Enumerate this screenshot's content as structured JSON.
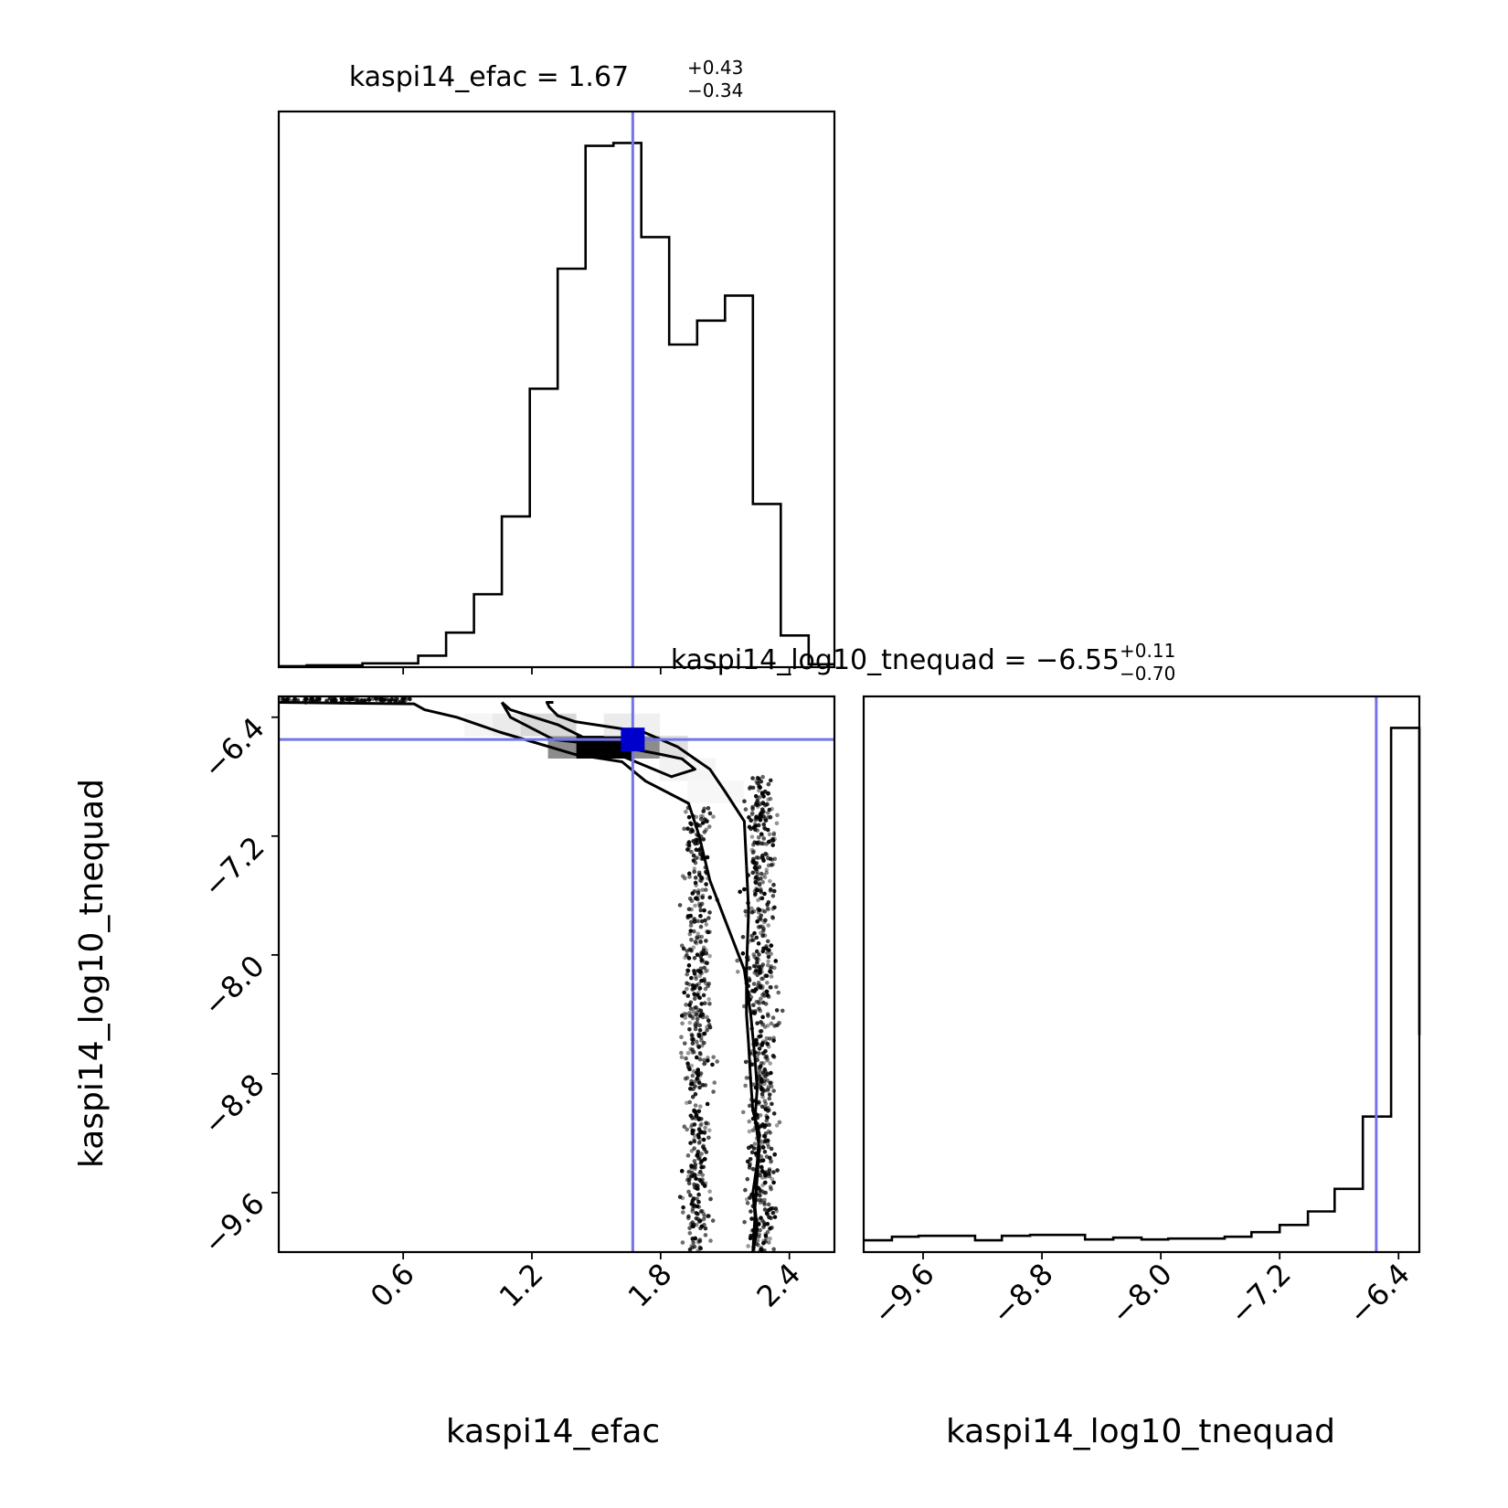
{
  "chart_data": {
    "type": "corner",
    "colors": {
      "truth": "#7474e8",
      "line": "#000000",
      "peak": "#0000cc"
    },
    "titles": {
      "efac": {
        "text": "kaspi14_efac = 1.67",
        "sup": "+0.43",
        "sub": "−0.34"
      },
      "tnequad": {
        "text": "kaspi14_log10_tnequad = −6.55",
        "sup": "+0.11",
        "sub": "−0.70"
      }
    },
    "xlabels": {
      "efac": "kaspi14_efac",
      "tnequad": "kaspi14_log10_tnequad"
    },
    "ylabel": "kaspi14_log10_tnequad",
    "truth": {
      "efac": 1.67,
      "tnequad": -6.55
    },
    "efac_axis": {
      "range": [
        0.02,
        2.61
      ],
      "ticks": [
        0.6,
        1.2,
        1.8,
        2.4
      ],
      "tick_labels": [
        "0.6",
        "1.2",
        "1.8",
        "2.4"
      ]
    },
    "tnequad_axis": {
      "range": [
        -10.0,
        -6.26
      ],
      "ticks": [
        -9.6,
        -8.8,
        -8.0,
        -7.2,
        -6.4
      ],
      "tick_labels": [
        "−9.6",
        "−8.8",
        "−8.0",
        "−7.2",
        "−6.4"
      ]
    },
    "efac_hist": {
      "edges": [
        0.02,
        0.15,
        0.28,
        0.41,
        0.54,
        0.67,
        0.8,
        0.93,
        1.06,
        1.19,
        1.32,
        1.45,
        1.58,
        1.71,
        1.84,
        1.97,
        2.1,
        2.23,
        2.36,
        2.49,
        2.61
      ],
      "counts": [
        1,
        2,
        2,
        4,
        4,
        12,
        36,
        76,
        157,
        290,
        415,
        543,
        546,
        448,
        336,
        361,
        387,
        170,
        33,
        3
      ]
    },
    "tnequad_hist": {
      "edges": [
        -10.0,
        -9.81,
        -9.63,
        -9.44,
        -9.25,
        -9.07,
        -8.88,
        -8.69,
        -8.51,
        -8.32,
        -8.13,
        -7.95,
        -7.76,
        -7.57,
        -7.39,
        -7.2,
        -7.01,
        -6.83,
        -6.64,
        -6.45,
        -6.26
      ],
      "counts": [
        13,
        17,
        18,
        18,
        13,
        18,
        19,
        19,
        14,
        16,
        14,
        15,
        15,
        17,
        22,
        30,
        45,
        70,
        150,
        580,
        240
      ]
    },
    "contours": [
      {
        "level": "outer",
        "efac": [
          0.02,
          0.65,
          0.7,
          0.85,
          1.05,
          1.4,
          1.62,
          1.73,
          1.93,
          1.98,
          2.03,
          2.11,
          2.19,
          2.22,
          2.24,
          2.25,
          2.24,
          2.26,
          2.25,
          2.24,
          2.25,
          2.23,
          2.24,
          2.23,
          2.25,
          2.26,
          2.23,
          2.22,
          2.21,
          2.2,
          2.2,
          2.21,
          2.2
        ],
        "tnequad": [
          -6.3,
          -6.31,
          -6.35,
          -6.4,
          -6.5,
          -6.65,
          -6.7,
          -6.83,
          -6.98,
          -7.2,
          -7.5,
          -7.8,
          -8.1,
          -8.4,
          -8.7,
          -8.9,
          -9.1,
          -9.3,
          -9.5,
          -9.7,
          -9.85,
          -10.0,
          -9.75,
          -9.6,
          -9.4,
          -9.2,
          -9.05,
          -8.85,
          -8.6,
          -8.4,
          -8.1,
          -7.7,
          -7.4
        ]
      },
      {
        "level": "outer_right",
        "efac": [
          2.2,
          2.19,
          2.1,
          2.03,
          1.88,
          1.72,
          1.4,
          1.32,
          1.28,
          1.27,
          1.3
        ],
        "tnequad": [
          -7.4,
          -7.1,
          -6.9,
          -6.75,
          -6.6,
          -6.5,
          -6.43,
          -6.39,
          -6.33,
          -6.3,
          -6.3
        ]
      },
      {
        "level": "inner",
        "efac": [
          1.06,
          1.1,
          1.3,
          1.62,
          1.8,
          1.9,
          1.96,
          1.85,
          1.6,
          1.32,
          1.1,
          1.06
        ],
        "tnequad": [
          -6.3,
          -6.4,
          -6.55,
          -6.6,
          -6.65,
          -6.68,
          -6.75,
          -6.8,
          -6.65,
          -6.45,
          -6.35,
          -6.3
        ]
      }
    ],
    "density": [
      {
        "efac": 1.47,
        "tnequad": -6.6,
        "level": 1.0
      },
      {
        "efac": 1.6,
        "tnequad": -6.6,
        "level": 1.0
      },
      {
        "efac": 1.34,
        "tnequad": -6.6,
        "level": 0.45
      },
      {
        "efac": 1.73,
        "tnequad": -6.6,
        "level": 0.45
      },
      {
        "efac": 1.86,
        "tnequad": -6.6,
        "level": 0.12
      },
      {
        "efac": 1.21,
        "tnequad": -6.45,
        "level": 0.15
      },
      {
        "efac": 1.34,
        "tnequad": -6.45,
        "level": 0.15
      },
      {
        "efac": 1.08,
        "tnequad": -6.45,
        "level": 0.08
      },
      {
        "efac": 1.6,
        "tnequad": -6.45,
        "level": 0.08
      },
      {
        "efac": 1.73,
        "tnequad": -6.45,
        "level": 0.06
      },
      {
        "efac": 0.95,
        "tnequad": -6.45,
        "level": 0.04
      },
      {
        "efac": 1.86,
        "tnequad": -6.75,
        "level": 0.05
      },
      {
        "efac": 1.99,
        "tnequad": -6.75,
        "level": 0.04
      },
      {
        "efac": 1.99,
        "tnequad": -6.9,
        "level": 0.03
      },
      {
        "efac": 2.12,
        "tnequad": -6.9,
        "level": 0.03
      }
    ]
  }
}
